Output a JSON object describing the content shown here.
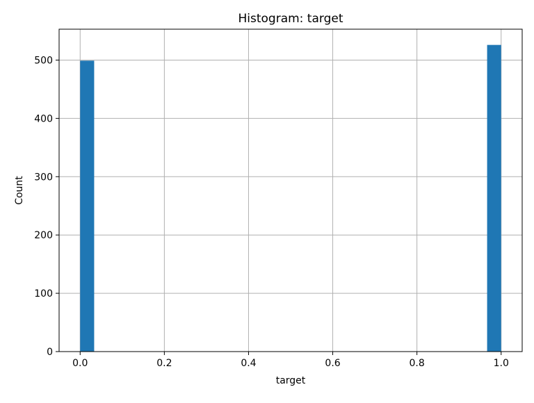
{
  "chart_data": {
    "type": "bar",
    "title": "Histogram: target",
    "xlabel": "target",
    "ylabel": "Count",
    "xlim": [
      -0.05,
      1.05
    ],
    "ylim": [
      0,
      553
    ],
    "grid": true,
    "bar_color": "#1f77b4",
    "grid_color": "#b0b0b0",
    "bins": [
      {
        "x0": 0.0,
        "x1": 0.0333,
        "count": 499
      },
      {
        "x0": 0.9667,
        "x1": 1.0,
        "count": 526
      }
    ],
    "xticks": [
      {
        "value": 0.0,
        "label": "0.0"
      },
      {
        "value": 0.2,
        "label": "0.2"
      },
      {
        "value": 0.4,
        "label": "0.4"
      },
      {
        "value": 0.6,
        "label": "0.6"
      },
      {
        "value": 0.8,
        "label": "0.8"
      },
      {
        "value": 1.0,
        "label": "1.0"
      }
    ],
    "yticks": [
      {
        "value": 0,
        "label": "0"
      },
      {
        "value": 100,
        "label": "100"
      },
      {
        "value": 200,
        "label": "200"
      },
      {
        "value": 300,
        "label": "300"
      },
      {
        "value": 400,
        "label": "400"
      },
      {
        "value": 500,
        "label": "500"
      }
    ]
  }
}
